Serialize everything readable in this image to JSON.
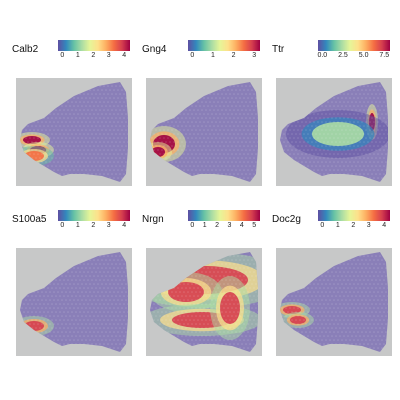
{
  "panels": [
    {
      "gene": "Calb2",
      "ticks": [
        "0",
        "1",
        "2",
        "3",
        "4"
      ],
      "hotspots": [
        {
          "region": "olfactory-bulb-left-band",
          "level": 0.95
        },
        {
          "region": "olfactory-bulb-left-lower",
          "level": 0.8
        }
      ]
    },
    {
      "gene": "Gng4",
      "ticks": [
        "0",
        "1",
        "2",
        "3"
      ],
      "hotspots": [
        {
          "region": "olfactory-bulb-left",
          "level": 0.95
        }
      ]
    },
    {
      "gene": "Ttr",
      "ticks": [
        "0.0",
        "2.5",
        "5.0",
        "7.5"
      ],
      "hotspots": [
        {
          "region": "right-ventricle-streak",
          "level": 0.95
        },
        {
          "region": "center-band",
          "level": 0.35
        }
      ]
    },
    {
      "gene": "S100a5",
      "ticks": [
        "0",
        "1",
        "2",
        "3",
        "4"
      ],
      "hotspots": [
        {
          "region": "olfactory-bulb-left-lower",
          "level": 0.9
        }
      ]
    },
    {
      "gene": "Nrgn",
      "ticks": [
        "0",
        "1",
        "2",
        "3",
        "4",
        "5"
      ],
      "hotspots": [
        {
          "region": "cortex-wide",
          "level": 0.85
        }
      ]
    },
    {
      "gene": "Doc2g",
      "ticks": [
        "0",
        "1",
        "2",
        "3",
        "4"
      ],
      "hotspots": [
        {
          "region": "olfactory-bulb-left-band",
          "level": 0.9
        }
      ]
    }
  ],
  "colormap": [
    "#5e4fa2",
    "#3288bd",
    "#66c2a5",
    "#abdda4",
    "#e6f598",
    "#fee08b",
    "#fdae61",
    "#f46d43",
    "#d53e4f",
    "#9e0142"
  ],
  "tissue_base_color": "#8a7fb8",
  "background_color": "#c7c8c8"
}
